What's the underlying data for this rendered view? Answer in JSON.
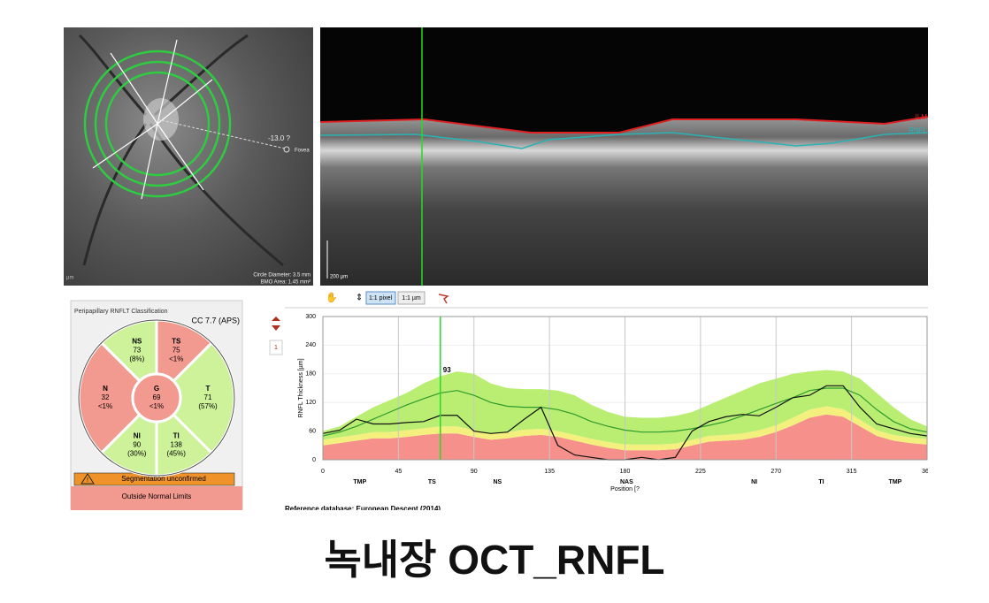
{
  "fundus": {
    "angle_label": "-13.0 ?",
    "fovea_label": "Fovea",
    "circle_diameter": "Circle Diameter: 3.5 mm",
    "bmo_area": "BMO Area: 1.45 mm²",
    "unit": "µm"
  },
  "bscan": {
    "ilm_label": "ILM",
    "rnfl_label": "RNFL",
    "scale_label": "200 µm"
  },
  "toolbar": {
    "pixel_button": "1:1 pixel",
    "micron_button": "1:1 µm"
  },
  "classification": {
    "title": "Peripapillary RNFLT Classification",
    "version": "CC 7.7 (APS)",
    "sectors": [
      {
        "name": "T",
        "value": 71,
        "percent": "(57%)",
        "color": "#cdf29a"
      },
      {
        "name": "TS",
        "value": 75,
        "percent": "<1%",
        "color": "#f39a90"
      },
      {
        "name": "NS",
        "value": 73,
        "percent": "(8%)",
        "color": "#cdf29a"
      },
      {
        "name": "N",
        "value": 32,
        "percent": "<1%",
        "color": "#f39a90"
      },
      {
        "name": "NI",
        "value": 90,
        "percent": "(30%)",
        "color": "#cdf29a"
      },
      {
        "name": "TI",
        "value": 138,
        "percent": "(45%)",
        "color": "#cdf29a"
      },
      {
        "name": "G",
        "value": 69,
        "percent": "<1%",
        "color": "#f39a90"
      }
    ],
    "warning": "Segmentation unconfirmed",
    "result": "Outside Normal Limits"
  },
  "page_index": "1",
  "chart_data": {
    "type": "line",
    "y_label": "RNFL Thickness [µm]",
    "x_label": "Position [?",
    "xlim": [
      0,
      360
    ],
    "xticks": [
      0,
      45,
      90,
      135,
      180,
      225,
      270,
      315,
      360
    ],
    "ylim": [
      0,
      300
    ],
    "yticks": [
      0,
      60,
      120,
      180,
      240,
      300
    ],
    "grid": true,
    "x": [
      0,
      10,
      20,
      30,
      40,
      50,
      60,
      70,
      80,
      90,
      100,
      110,
      120,
      130,
      140,
      150,
      160,
      170,
      180,
      190,
      200,
      210,
      220,
      230,
      240,
      250,
      260,
      270,
      280,
      290,
      300,
      310,
      320,
      330,
      340,
      350,
      360
    ],
    "series": [
      {
        "style": "band",
        "color": "#f5908a",
        "values": [
          30,
          35,
          40,
          45,
          45,
          48,
          52,
          55,
          55,
          48,
          42,
          45,
          50,
          52,
          48,
          40,
          32,
          25,
          20,
          20,
          20,
          22,
          30,
          38,
          40,
          42,
          48,
          58,
          72,
          88,
          95,
          90,
          70,
          50,
          40,
          35,
          32
        ]
      },
      {
        "style": "band",
        "color": "#f4f07e",
        "values": [
          42,
          47,
          52,
          58,
          58,
          62,
          66,
          70,
          70,
          62,
          55,
          58,
          63,
          65,
          60,
          52,
          44,
          37,
          32,
          32,
          32,
          34,
          42,
          50,
          52,
          55,
          62,
          72,
          88,
          105,
          112,
          106,
          84,
          62,
          52,
          47,
          44
        ]
      },
      {
        "style": "band",
        "color": "#baee72",
        "values": [
          60,
          70,
          90,
          110,
          125,
          140,
          160,
          175,
          185,
          180,
          160,
          150,
          148,
          148,
          145,
          135,
          115,
          100,
          90,
          88,
          88,
          92,
          100,
          115,
          130,
          145,
          160,
          170,
          180,
          185,
          188,
          185,
          170,
          140,
          110,
          85,
          70
        ]
      },
      {
        "style": "line",
        "color": "#2e9a2e",
        "values": [
          50,
          58,
          70,
          85,
          100,
          115,
          128,
          140,
          145,
          135,
          120,
          112,
          110,
          110,
          105,
          95,
          80,
          70,
          62,
          58,
          58,
          60,
          65,
          72,
          80,
          92,
          105,
          118,
          130,
          145,
          150,
          150,
          135,
          105,
          80,
          65,
          58
        ]
      },
      {
        "style": "line",
        "color": "#111111",
        "values": [
          55,
          62,
          85,
          75,
          75,
          78,
          80,
          93,
          93,
          60,
          55,
          58,
          85,
          110,
          30,
          10,
          5,
          0,
          0,
          5,
          0,
          5,
          60,
          80,
          90,
          95,
          92,
          110,
          130,
          135,
          155,
          155,
          110,
          75,
          65,
          55,
          50
        ]
      }
    ],
    "marker": {
      "x": 70,
      "label": 93
    },
    "sector_labels": [
      {
        "label": "TMP",
        "x": 22
      },
      {
        "label": "TS",
        "x": 65
      },
      {
        "label": "NS",
        "x": 104
      },
      {
        "label": "NAS",
        "x": 181
      },
      {
        "label": "NI",
        "x": 257
      },
      {
        "label": "TI",
        "x": 297
      },
      {
        "label": "TMP",
        "x": 341
      }
    ]
  },
  "footer": "Reference database: European Descent (2014)",
  "caption": "녹내장 OCT_RNFL"
}
